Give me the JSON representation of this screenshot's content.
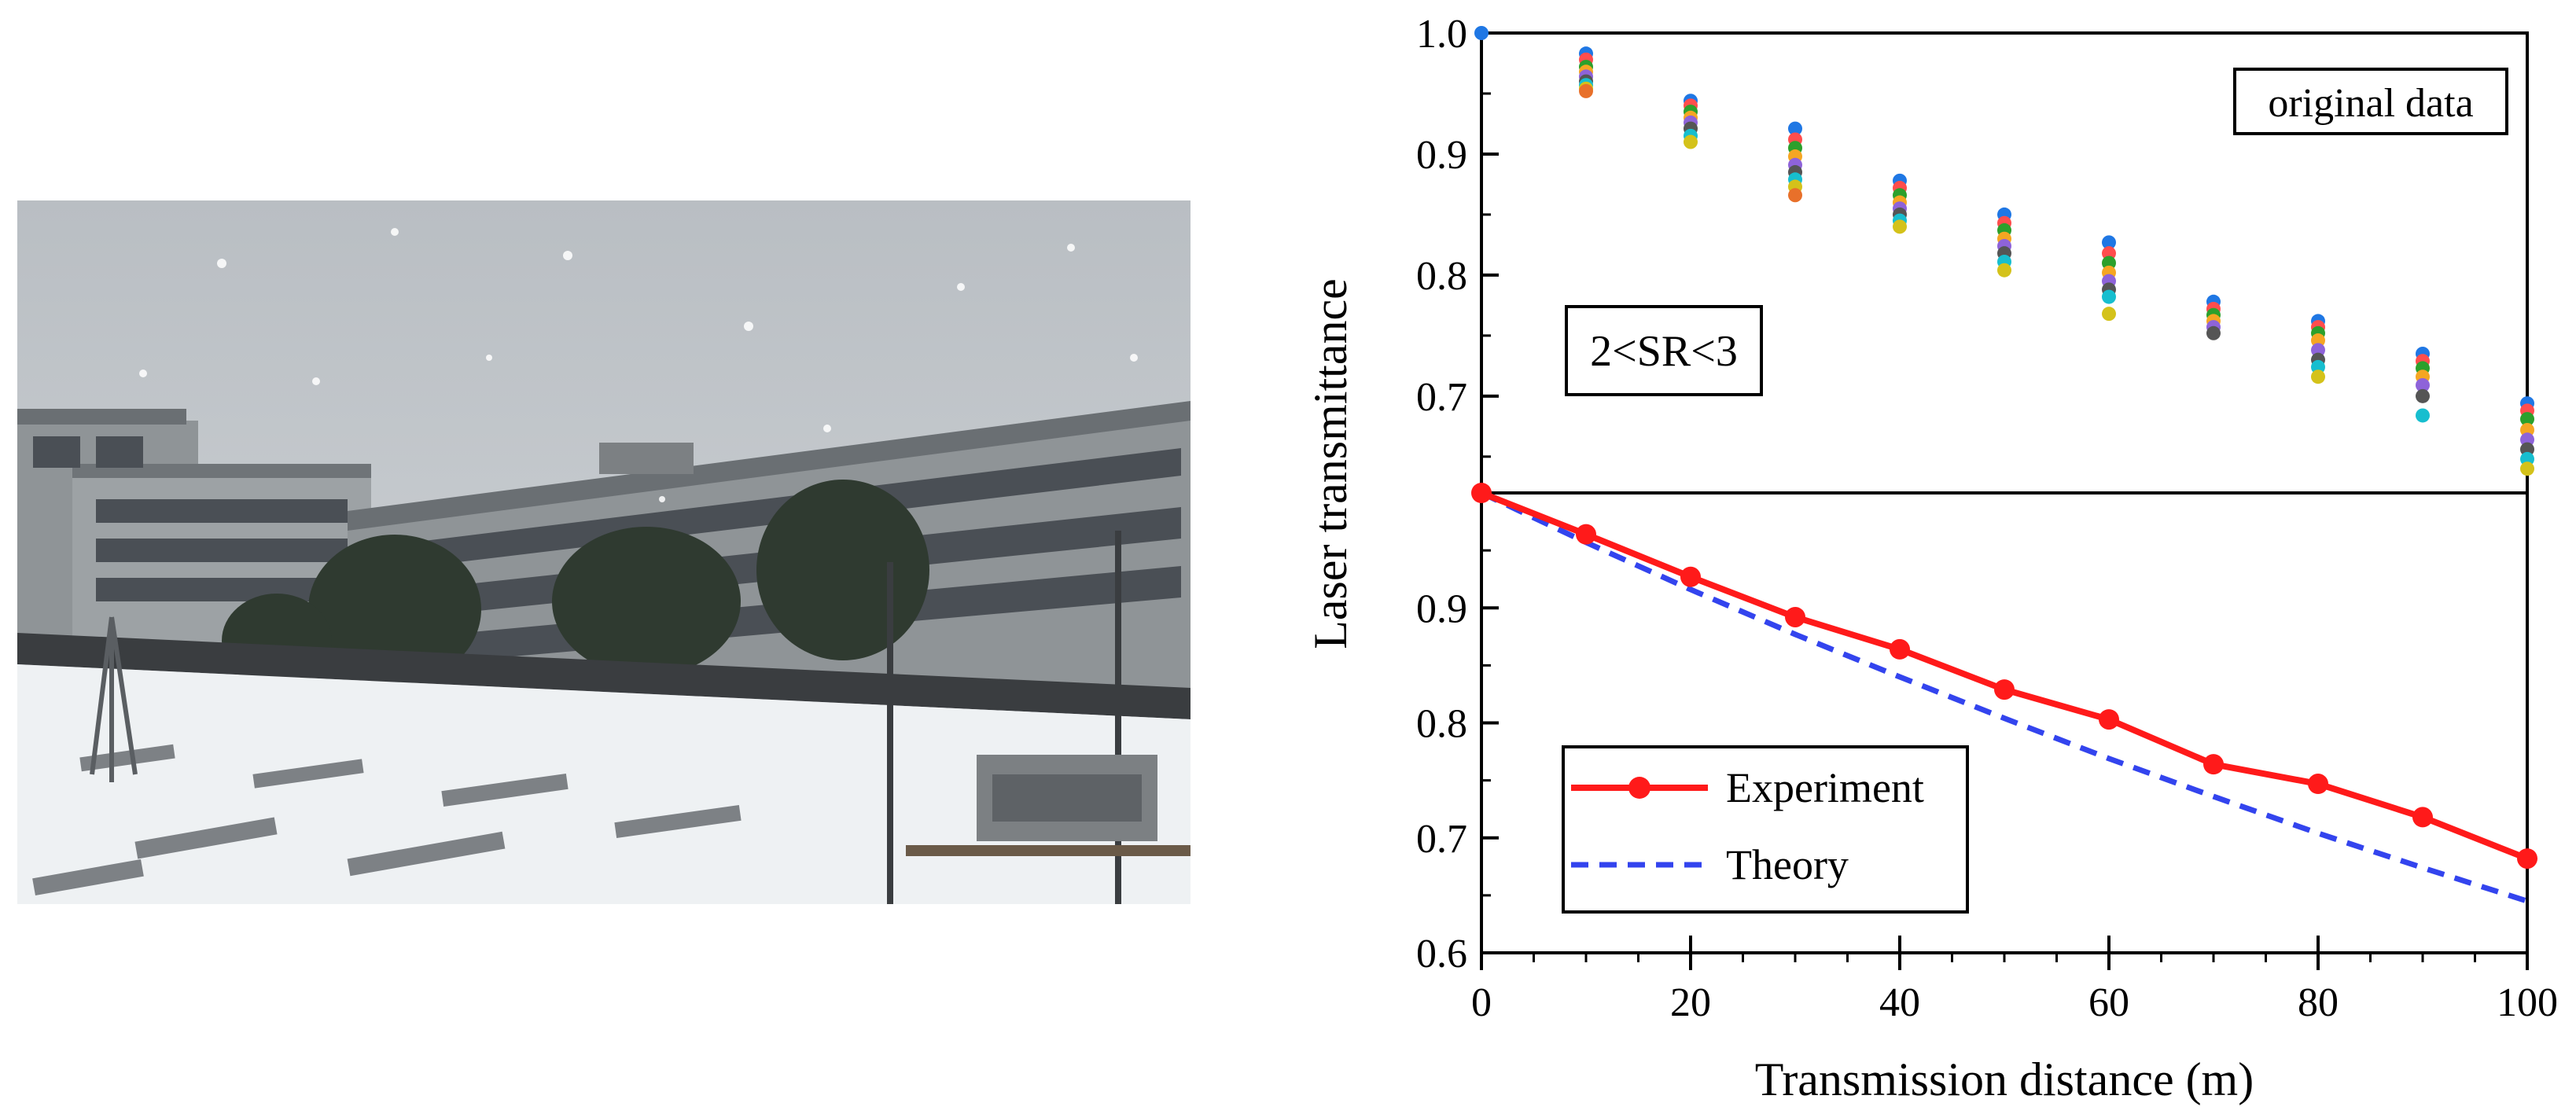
{
  "photo": {
    "colors": {
      "sky": "#b9bec3",
      "sky_bottom": "#d2d6d9",
      "building": "#8f9497",
      "building_dark": "#6a6f73",
      "window": "#4a4f55",
      "tree": "#2f3a30",
      "snow": "#eef1f3",
      "roof_dark": "#3a3d40",
      "equipment": "#7c8083"
    }
  },
  "chart_data": [
    {
      "panel": "top",
      "type": "scatter",
      "annotations": [
        "original data",
        "2<SR<3"
      ],
      "annotation_colors": [
        "#000000",
        "#ff0000"
      ],
      "ylim": [
        0.62,
        1.0
      ],
      "yticks": [
        "1.0",
        "0.9",
        "0.8",
        "0.7"
      ],
      "xlim": [
        0,
        100
      ],
      "point_colors": [
        "#1f77e4",
        "#ff4d4d",
        "#2ca02c",
        "#f5a623",
        "#8e63d9",
        "#555555",
        "#17becf",
        "#d4c21a",
        "#e8702a",
        "#3b7dd8"
      ],
      "points": [
        {
          "x": 0,
          "y": [
            1.0
          ]
        },
        {
          "x": 10,
          "y": [
            0.983,
            0.978,
            0.972,
            0.968,
            0.964,
            0.96,
            0.957,
            0.954,
            0.952
          ]
        },
        {
          "x": 20,
          "y": [
            0.944,
            0.94,
            0.935,
            0.93,
            0.926,
            0.921,
            0.915,
            0.91
          ]
        },
        {
          "x": 30,
          "y": [
            0.921,
            0.912,
            0.905,
            0.898,
            0.891,
            0.885,
            0.879,
            0.873,
            0.866
          ]
        },
        {
          "x": 40,
          "y": [
            0.878,
            0.872,
            0.866,
            0.86,
            0.855,
            0.85,
            0.845,
            0.84
          ]
        },
        {
          "x": 50,
          "y": [
            0.85,
            0.843,
            0.837,
            0.83,
            0.824,
            0.818,
            0.811,
            0.804
          ]
        },
        {
          "x": 60,
          "y": [
            0.827,
            0.818,
            0.81,
            0.802,
            0.795,
            0.788,
            0.782,
            0.768
          ]
        },
        {
          "x": 70,
          "y": [
            0.778,
            0.772,
            0.767,
            0.762,
            0.757,
            0.752
          ]
        },
        {
          "x": 80,
          "y": [
            0.762,
            0.757,
            0.752,
            0.746,
            0.738,
            0.73,
            0.724,
            0.716
          ]
        },
        {
          "x": 90,
          "y": [
            0.735,
            0.729,
            0.723,
            0.716,
            0.709,
            0.7,
            0.684
          ]
        },
        {
          "x": 100,
          "y": [
            0.694,
            0.688,
            0.681,
            0.672,
            0.664,
            0.656,
            0.648,
            0.64
          ]
        }
      ]
    },
    {
      "panel": "bottom",
      "type": "line",
      "xlabel": "Transmission distance (m)",
      "ylabel": "Laser transmittance",
      "xlim": [
        0,
        100
      ],
      "ylim": [
        0.6,
        1.0
      ],
      "xticks": [
        "0",
        "20",
        "40",
        "60",
        "80",
        "100"
      ],
      "yticks": [
        "1.0",
        "0.9",
        "0.8",
        "0.7",
        "0.6"
      ],
      "legend_position": "bottom-left",
      "x": [
        0,
        10,
        20,
        30,
        40,
        50,
        60,
        70,
        80,
        90,
        100
      ],
      "series": [
        {
          "name": "Experiment",
          "color": "#ff1a1a",
          "style": "solid-with-markers",
          "values": [
            1.0,
            0.964,
            0.927,
            0.892,
            0.864,
            0.829,
            0.803,
            0.764,
            0.747,
            0.718,
            0.682
          ]
        },
        {
          "name": "Theory",
          "color": "#3344ee",
          "style": "dashed",
          "values": [
            1.0,
            0.957,
            0.916,
            0.877,
            0.84,
            0.804,
            0.769,
            0.736,
            0.704,
            0.674,
            0.645
          ]
        }
      ]
    }
  ]
}
